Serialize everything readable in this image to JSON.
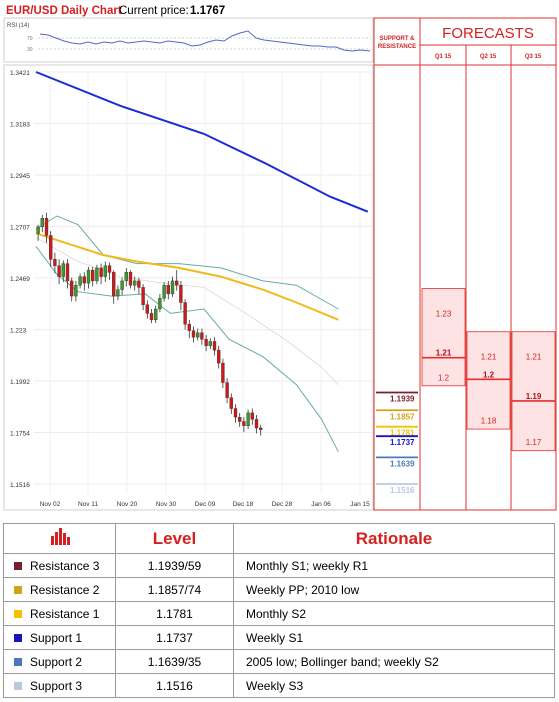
{
  "header": {
    "title": "EUR/USD Daily Chart",
    "price_label": "Current price:",
    "price_value": "1.1767"
  },
  "rsi_label": "RSI (14)",
  "rsi_ticks": [
    "70",
    "30"
  ],
  "sr_header": "SUPPORT & RESISTANCE",
  "forecasts_title": "FORECASTS",
  "quarters": [
    "Q1 15",
    "Q2 15",
    "Q3 15"
  ],
  "colors": {
    "resistance3": "#7b1e2e",
    "resistance2": "#d4a017",
    "resistance1": "#f2c200",
    "support1": "#1515c8",
    "support2": "#4a7bb8",
    "support3": "#b7c9e2",
    "ma_long": "#1d2bd6",
    "ma_mid": "#f2b91a",
    "bollinger": "#6aa9a9",
    "bull": "#3a9a2a",
    "bear": "#d01a1a",
    "accent": "#e03030"
  },
  "sr_levels": [
    {
      "label": "1.1939",
      "color": "resistance3"
    },
    {
      "label": "1.1857",
      "color": "resistance2"
    },
    {
      "label": "1.1781",
      "color": "resistance1"
    },
    {
      "label": "1.1737",
      "color": "support1"
    },
    {
      "label": "1.1639",
      "color": "support2"
    },
    {
      "label": "1.1516",
      "color": "support3"
    }
  ],
  "forecasts": [
    {
      "quarter": "Q1 15",
      "high": "1.23",
      "mid": "1.21",
      "low": "1.2"
    },
    {
      "quarter": "Q2 15",
      "high": "1.21",
      "mid": "1.2",
      "low": "1.18"
    },
    {
      "quarter": "Q3 15",
      "high": "1.21",
      "mid": "1.19",
      "low": "1.17"
    }
  ],
  "chart_data": {
    "type": "candlestick",
    "title": "EUR/USD Daily Chart",
    "x_ticks": [
      "Nov 02",
      "Nov 11",
      "Nov 20",
      "Nov 30",
      "Dec 09",
      "Dec 18",
      "Dec 28",
      "Jan 06",
      "Jan 15"
    ],
    "y_ticks": [
      1.3421,
      1.3183,
      1.2945,
      1.2707,
      1.2469,
      1.223,
      1.1992,
      1.1754,
      1.1516
    ],
    "ylim": [
      1.148,
      1.346
    ],
    "candles": [
      [
        1.2675,
        1.2705,
        1.264,
        1.2715
      ],
      [
        1.2705,
        1.2745,
        1.268,
        1.276
      ],
      [
        1.2745,
        1.2665,
        1.263,
        1.277
      ],
      [
        1.2665,
        1.2555,
        1.252,
        1.2685
      ],
      [
        1.2555,
        1.2525,
        1.249,
        1.2585
      ],
      [
        1.2525,
        1.2475,
        1.244,
        1.2555
      ],
      [
        1.2475,
        1.2535,
        1.245,
        1.255
      ],
      [
        1.2535,
        1.2455,
        1.242,
        1.2555
      ],
      [
        1.2455,
        1.2385,
        1.236,
        1.247
      ],
      [
        1.2385,
        1.2435,
        1.236,
        1.2455
      ],
      [
        1.2435,
        1.2475,
        1.242,
        1.249
      ],
      [
        1.2475,
        1.2445,
        1.241,
        1.2495
      ],
      [
        1.2445,
        1.2505,
        1.242,
        1.252
      ],
      [
        1.2505,
        1.2455,
        1.243,
        1.252
      ],
      [
        1.2455,
        1.2515,
        1.244,
        1.253
      ],
      [
        1.2515,
        1.2475,
        1.244,
        1.2535
      ],
      [
        1.2475,
        1.2525,
        1.245,
        1.2545
      ],
      [
        1.2525,
        1.2495,
        1.246,
        1.254
      ],
      [
        1.2495,
        1.2385,
        1.235,
        1.2505
      ],
      [
        1.2385,
        1.2415,
        1.2365,
        1.2435
      ],
      [
        1.2415,
        1.2455,
        1.239,
        1.247
      ],
      [
        1.2455,
        1.2495,
        1.243,
        1.2515
      ],
      [
        1.2495,
        1.2435,
        1.242,
        1.2505
      ],
      [
        1.2435,
        1.2455,
        1.241,
        1.2475
      ],
      [
        1.2455,
        1.2425,
        1.2395,
        1.247
      ],
      [
        1.2425,
        1.2345,
        1.232,
        1.244
      ],
      [
        1.2345,
        1.2305,
        1.228,
        1.2365
      ],
      [
        1.2305,
        1.2275,
        1.226,
        1.2325
      ],
      [
        1.2275,
        1.2325,
        1.226,
        1.234
      ],
      [
        1.2325,
        1.2375,
        1.231,
        1.2395
      ],
      [
        1.2375,
        1.2435,
        1.236,
        1.245
      ],
      [
        1.2435,
        1.2395,
        1.237,
        1.2455
      ],
      [
        1.2395,
        1.2455,
        1.238,
        1.2475
      ],
      [
        1.2455,
        1.2435,
        1.241,
        1.2505
      ],
      [
        1.2435,
        1.2355,
        1.232,
        1.2455
      ],
      [
        1.2355,
        1.2255,
        1.223,
        1.237
      ],
      [
        1.2255,
        1.2225,
        1.219,
        1.2275
      ],
      [
        1.2225,
        1.2195,
        1.217,
        1.2245
      ],
      [
        1.2195,
        1.2215,
        1.218,
        1.2235
      ],
      [
        1.2215,
        1.2185,
        1.216,
        1.2235
      ],
      [
        1.2185,
        1.2155,
        1.213,
        1.2205
      ],
      [
        1.2155,
        1.2175,
        1.214,
        1.219
      ],
      [
        1.2175,
        1.2135,
        1.211,
        1.2195
      ],
      [
        1.2135,
        1.2075,
        1.205,
        1.2155
      ],
      [
        1.2075,
        1.1985,
        1.196,
        1.2095
      ],
      [
        1.1985,
        1.1915,
        1.189,
        1.2005
      ],
      [
        1.1915,
        1.1865,
        1.184,
        1.1935
      ],
      [
        1.1865,
        1.1825,
        1.18,
        1.1885
      ],
      [
        1.1825,
        1.1805,
        1.178,
        1.1845
      ],
      [
        1.1805,
        1.1785,
        1.1755,
        1.1825
      ],
      [
        1.1785,
        1.1845,
        1.177,
        1.186
      ],
      [
        1.1845,
        1.1815,
        1.179,
        1.1865
      ],
      [
        1.1815,
        1.1775,
        1.175,
        1.1835
      ],
      [
        1.1775,
        1.1767,
        1.174,
        1.179
      ]
    ],
    "ma_long": [
      [
        0,
        1.3421
      ],
      [
        20,
        1.3265
      ],
      [
        40,
        1.3135
      ],
      [
        55,
        1.2995
      ],
      [
        70,
        1.2845
      ],
      [
        79,
        1.2775
      ]
    ],
    "ma_mid": [
      [
        0,
        1.2675
      ],
      [
        8,
        1.2625
      ],
      [
        16,
        1.2575
      ],
      [
        24,
        1.2545
      ],
      [
        34,
        1.2515
      ],
      [
        44,
        1.2475
      ],
      [
        54,
        1.2415
      ],
      [
        62,
        1.2355
      ],
      [
        72,
        1.2275
      ]
    ],
    "boll_upper": [
      [
        0,
        1.2695
      ],
      [
        5,
        1.2755
      ],
      [
        10,
        1.2715
      ],
      [
        16,
        1.2575
      ],
      [
        24,
        1.2535
      ],
      [
        34,
        1.2535
      ],
      [
        44,
        1.2515
      ],
      [
        54,
        1.2455
      ],
      [
        62,
        1.2435
      ],
      [
        72,
        1.2325
      ]
    ],
    "boll_lower": [
      [
        0,
        1.2615
      ],
      [
        5,
        1.2485
      ],
      [
        10,
        1.2405
      ],
      [
        18,
        1.2385
      ],
      [
        26,
        1.2395
      ],
      [
        32,
        1.2305
      ],
      [
        40,
        1.2325
      ],
      [
        46,
        1.2185
      ],
      [
        54,
        1.2105
      ],
      [
        62,
        1.1975
      ],
      [
        68,
        1.1815
      ],
      [
        72,
        1.1665
      ]
    ],
    "boll_mid": [
      [
        0,
        1.2655
      ],
      [
        10,
        1.2545
      ],
      [
        20,
        1.2475
      ],
      [
        30,
        1.2445
      ],
      [
        40,
        1.2425
      ],
      [
        50,
        1.2305
      ],
      [
        60,
        1.2175
      ],
      [
        68,
        1.2055
      ],
      [
        72,
        1.1975
      ]
    ]
  },
  "table": {
    "icon": "bar-chart-icon",
    "headers": [
      "Level",
      "Rationale"
    ],
    "rows": [
      {
        "name": "Resistance 3",
        "level": "1.1939/59",
        "rationale": "Monthly S1; weekly R1",
        "color": "resistance3"
      },
      {
        "name": "Resistance 2",
        "level": "1.1857/74",
        "rationale": "Weekly PP; 2010 low",
        "color": "resistance2"
      },
      {
        "name": "Resistance 1",
        "level": "1.1781",
        "rationale": "Monthly S2",
        "color": "resistance1"
      },
      {
        "name": "Support 1",
        "level": "1.1737",
        "rationale": "Weekly S1",
        "color": "support1"
      },
      {
        "name": "Support 2",
        "level": "1.1639/35",
        "rationale": "2005 low; Bollinger band; weekly S2",
        "color": "support2"
      },
      {
        "name": "Support 3",
        "level": "1.1516",
        "rationale": "Weekly S3",
        "color": "support3"
      }
    ]
  }
}
